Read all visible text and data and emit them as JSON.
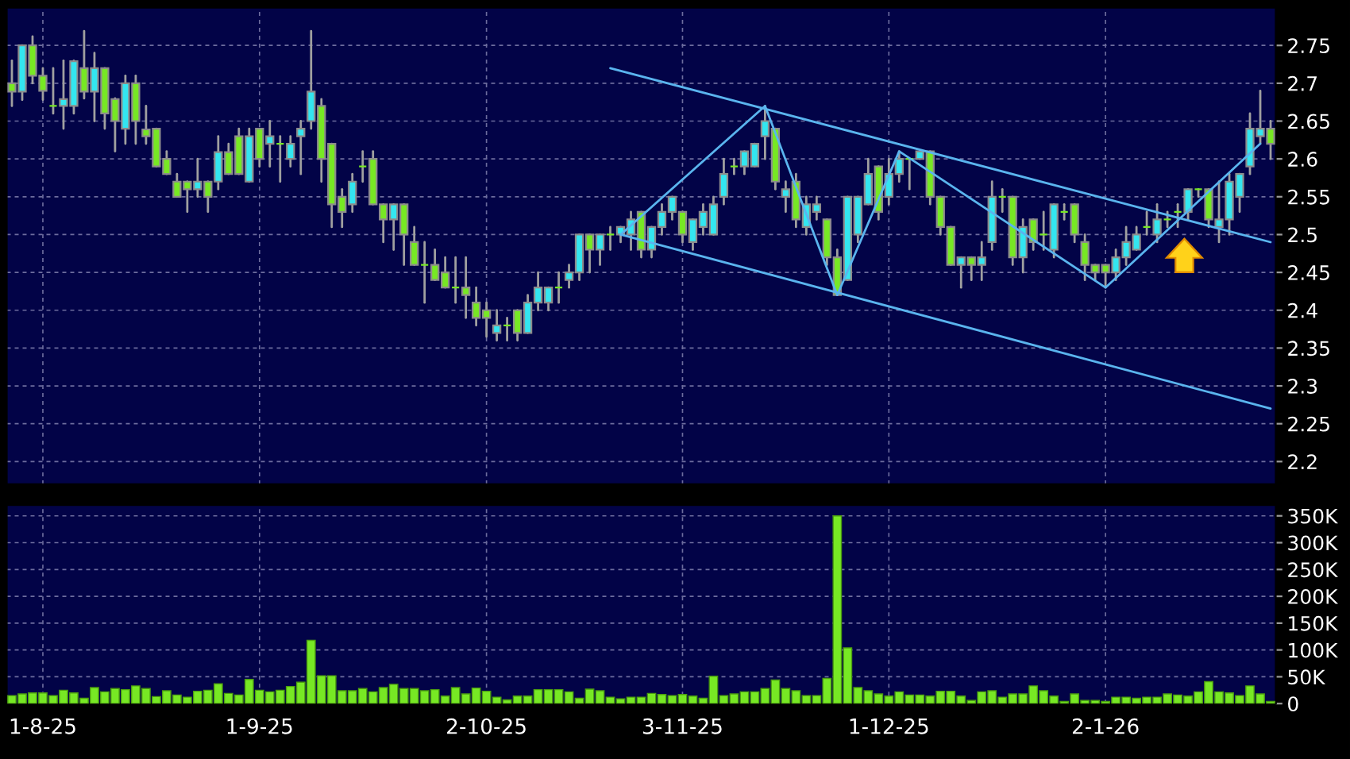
{
  "chart_data": [
    {
      "type": "candlestick",
      "tick_labels": "y",
      "grid": true,
      "categories": [
        null,
        null,
        null,
        null,
        null,
        null,
        null,
        null,
        null,
        null,
        null,
        null,
        null,
        null,
        null,
        null,
        null,
        null,
        null,
        null,
        null,
        null,
        null,
        null,
        null,
        null,
        null,
        null,
        null,
        null,
        null,
        null,
        null,
        null,
        null,
        null,
        null,
        null,
        null,
        null,
        null,
        null,
        null,
        null,
        null,
        null,
        null,
        null,
        null,
        null,
        null,
        null,
        null,
        null,
        null,
        null,
        null,
        null,
        null,
        null,
        null,
        null,
        null,
        null,
        null,
        null,
        null,
        null,
        null,
        null,
        null,
        null,
        null,
        null,
        null,
        null,
        null,
        null,
        null,
        null,
        null,
        null,
        null,
        null,
        null,
        null,
        null,
        null,
        null,
        null,
        null,
        null,
        null,
        null,
        null,
        null,
        null,
        null,
        null,
        null,
        null,
        null,
        null,
        null,
        null,
        null,
        null,
        null,
        null,
        null,
        null,
        null,
        null,
        null,
        null,
        null,
        null,
        null,
        null,
        null,
        null,
        null,
        null
      ],
      "ohlc": [
        [
          2.7,
          2.73,
          2.67,
          2.689
        ],
        [
          2.689,
          2.75,
          2.678,
          2.75
        ],
        [
          2.75,
          2.762,
          2.7,
          2.71
        ],
        [
          2.71,
          2.72,
          2.678,
          2.69
        ],
        [
          2.67,
          2.72,
          2.66,
          2.67
        ],
        [
          2.67,
          2.73,
          2.64,
          2.679
        ],
        [
          2.67,
          2.73,
          2.66,
          2.729
        ],
        [
          2.72,
          2.769,
          2.68,
          2.689
        ],
        [
          2.689,
          2.74,
          2.65,
          2.72
        ],
        [
          2.72,
          2.72,
          2.64,
          2.66
        ],
        [
          2.679,
          2.68,
          2.61,
          2.65
        ],
        [
          2.64,
          2.71,
          2.62,
          2.7
        ],
        [
          2.7,
          2.71,
          2.62,
          2.65
        ],
        [
          2.639,
          2.67,
          2.62,
          2.63
        ],
        [
          2.64,
          2.64,
          2.59,
          2.59
        ],
        [
          2.6,
          2.61,
          2.58,
          2.58
        ],
        [
          2.57,
          2.58,
          2.55,
          2.55
        ],
        [
          2.57,
          2.57,
          2.53,
          2.56
        ],
        [
          2.56,
          2.6,
          2.55,
          2.57
        ],
        [
          2.57,
          2.57,
          2.53,
          2.55
        ],
        [
          2.57,
          2.63,
          2.56,
          2.609
        ],
        [
          2.609,
          2.62,
          2.58,
          2.58
        ],
        [
          2.63,
          2.64,
          2.58,
          2.58
        ],
        [
          2.57,
          2.64,
          2.57,
          2.63
        ],
        [
          2.64,
          2.64,
          2.59,
          2.6
        ],
        [
          2.62,
          2.65,
          2.59,
          2.63
        ],
        [
          2.62,
          2.63,
          2.57,
          2.62
        ],
        [
          2.6,
          2.63,
          2.59,
          2.62
        ],
        [
          2.63,
          2.65,
          2.58,
          2.64
        ],
        [
          2.65,
          2.769,
          2.64,
          2.689
        ],
        [
          2.67,
          2.679,
          2.57,
          2.6
        ],
        [
          2.62,
          2.62,
          2.51,
          2.54
        ],
        [
          2.55,
          2.56,
          2.51,
          2.53
        ],
        [
          2.54,
          2.58,
          2.53,
          2.57
        ],
        [
          2.59,
          2.61,
          2.57,
          2.59
        ],
        [
          2.6,
          2.61,
          2.54,
          2.54
        ],
        [
          2.54,
          2.54,
          2.49,
          2.52
        ],
        [
          2.52,
          2.54,
          2.48,
          2.54
        ],
        [
          2.54,
          2.54,
          2.46,
          2.5
        ],
        [
          2.49,
          2.51,
          2.46,
          2.46
        ],
        [
          2.46,
          2.49,
          2.41,
          2.46
        ],
        [
          2.46,
          2.48,
          2.44,
          2.44
        ],
        [
          2.45,
          2.47,
          2.43,
          2.43
        ],
        [
          2.43,
          2.47,
          2.41,
          2.43
        ],
        [
          2.43,
          2.47,
          2.39,
          2.42
        ],
        [
          2.41,
          2.43,
          2.38,
          2.39
        ],
        [
          2.4,
          2.41,
          2.365,
          2.39
        ],
        [
          2.37,
          2.4,
          2.36,
          2.38
        ],
        [
          2.38,
          2.39,
          2.36,
          2.38
        ],
        [
          2.4,
          2.4,
          2.36,
          2.37
        ],
        [
          2.37,
          2.42,
          2.37,
          2.41
        ],
        [
          2.41,
          2.45,
          2.4,
          2.43
        ],
        [
          2.41,
          2.43,
          2.4,
          2.43
        ],
        [
          2.43,
          2.45,
          2.41,
          2.43
        ],
        [
          2.44,
          2.46,
          2.43,
          2.45
        ],
        [
          2.45,
          2.5,
          2.44,
          2.5
        ],
        [
          2.5,
          2.5,
          2.45,
          2.48
        ],
        [
          2.48,
          2.5,
          2.46,
          2.5
        ],
        [
          2.5,
          2.51,
          2.48,
          2.5
        ],
        [
          2.5,
          2.51,
          2.49,
          2.51
        ],
        [
          2.5,
          2.53,
          2.48,
          2.52
        ],
        [
          2.53,
          2.53,
          2.47,
          2.48
        ],
        [
          2.48,
          2.51,
          2.47,
          2.51
        ],
        [
          2.51,
          2.54,
          2.5,
          2.53
        ],
        [
          2.53,
          2.55,
          2.52,
          2.55
        ],
        [
          2.53,
          2.53,
          2.49,
          2.5
        ],
        [
          2.49,
          2.52,
          2.48,
          2.52
        ],
        [
          2.51,
          2.54,
          2.5,
          2.53
        ],
        [
          2.5,
          2.55,
          2.5,
          2.54
        ],
        [
          2.55,
          2.6,
          2.54,
          2.58
        ],
        [
          2.59,
          2.6,
          2.58,
          2.59
        ],
        [
          2.59,
          2.61,
          2.58,
          2.61
        ],
        [
          2.59,
          2.62,
          2.59,
          2.62
        ],
        [
          2.63,
          2.67,
          2.6,
          2.65
        ],
        [
          2.64,
          2.64,
          2.56,
          2.57
        ],
        [
          2.55,
          2.57,
          2.53,
          2.56
        ],
        [
          2.57,
          2.58,
          2.51,
          2.52
        ],
        [
          2.51,
          2.55,
          2.5,
          2.54
        ],
        [
          2.53,
          2.55,
          2.52,
          2.54
        ],
        [
          2.52,
          2.52,
          2.46,
          2.47
        ],
        [
          2.47,
          2.48,
          2.42,
          2.42
        ],
        [
          2.44,
          2.55,
          2.44,
          2.55
        ],
        [
          2.5,
          2.55,
          2.49,
          2.55
        ],
        [
          2.54,
          2.6,
          2.54,
          2.58
        ],
        [
          2.59,
          2.59,
          2.52,
          2.53
        ],
        [
          2.55,
          2.6,
          2.54,
          2.58
        ],
        [
          2.58,
          2.61,
          2.57,
          2.6
        ],
        [
          2.6,
          2.6,
          2.56,
          2.6
        ],
        [
          2.6,
          2.61,
          2.6,
          2.61
        ],
        [
          2.61,
          2.61,
          2.54,
          2.55
        ],
        [
          2.55,
          2.55,
          2.5,
          2.51
        ],
        [
          2.51,
          2.51,
          2.46,
          2.46
        ],
        [
          2.46,
          2.47,
          2.43,
          2.47
        ],
        [
          2.47,
          2.47,
          2.44,
          2.46
        ],
        [
          2.46,
          2.49,
          2.44,
          2.47
        ],
        [
          2.49,
          2.57,
          2.48,
          2.55
        ],
        [
          2.55,
          2.56,
          2.53,
          2.55
        ],
        [
          2.55,
          2.55,
          2.46,
          2.47
        ],
        [
          2.47,
          2.52,
          2.45,
          2.51
        ],
        [
          2.52,
          2.52,
          2.48,
          2.49
        ],
        [
          2.5,
          2.53,
          2.48,
          2.5
        ],
        [
          2.48,
          2.54,
          2.47,
          2.54
        ],
        [
          2.53,
          2.54,
          2.52,
          2.53
        ],
        [
          2.54,
          2.54,
          2.49,
          2.5
        ],
        [
          2.49,
          2.5,
          2.44,
          2.46
        ],
        [
          2.46,
          2.46,
          2.44,
          2.45
        ],
        [
          2.46,
          2.46,
          2.43,
          2.45
        ],
        [
          2.45,
          2.48,
          2.44,
          2.47
        ],
        [
          2.47,
          2.51,
          2.46,
          2.49
        ],
        [
          2.48,
          2.51,
          2.48,
          2.5
        ],
        [
          2.51,
          2.53,
          2.5,
          2.51
        ],
        [
          2.5,
          2.54,
          2.49,
          2.52
        ],
        [
          2.52,
          2.53,
          2.51,
          2.52
        ],
        [
          2.53,
          2.54,
          2.51,
          2.53
        ],
        [
          2.53,
          2.56,
          2.52,
          2.56
        ],
        [
          2.56,
          2.56,
          2.55,
          2.56
        ],
        [
          2.56,
          2.56,
          2.51,
          2.52
        ],
        [
          2.51,
          2.57,
          2.49,
          2.52
        ],
        [
          2.52,
          2.58,
          2.5,
          2.57
        ],
        [
          2.55,
          2.58,
          2.53,
          2.58
        ],
        [
          2.59,
          2.66,
          2.58,
          2.64
        ],
        [
          2.63,
          2.69,
          2.62,
          2.64
        ],
        [
          2.64,
          2.65,
          2.6,
          2.62
        ]
      ],
      "colors": [
        "#77e824",
        "#33e6f0",
        "#77e824",
        "#77e824",
        "#77e824",
        "#33e6f0",
        "#33e6f0",
        "#77e824",
        "#33e6f0",
        "#77e824",
        "#77e824",
        "#33e6f0",
        "#77e824",
        "#77e824",
        "#77e824",
        "#77e824",
        "#77e824",
        "#77e824",
        "#33e6f0",
        "#77e824",
        "#33e6f0",
        "#77e824",
        "#77e824",
        "#33e6f0",
        "#77e824",
        "#33e6f0",
        "#77e824",
        "#33e6f0",
        "#33e6f0",
        "#33e6f0",
        "#77e824",
        "#77e824",
        "#77e824",
        "#33e6f0",
        "#77e824",
        "#77e824",
        "#77e824",
        "#33e6f0",
        "#77e824",
        "#77e824",
        "#77e824",
        "#77e824",
        "#77e824",
        "#77e824",
        "#77e824",
        "#77e824",
        "#77e824",
        "#33e6f0",
        "#77e824",
        "#77e824",
        "#33e6f0",
        "#33e6f0",
        "#33e6f0",
        "#77e824",
        "#33e6f0",
        "#33e6f0",
        "#77e824",
        "#33e6f0",
        "#77e824",
        "#33e6f0",
        "#33e6f0",
        "#77e824",
        "#33e6f0",
        "#33e6f0",
        "#33e6f0",
        "#77e824",
        "#33e6f0",
        "#33e6f0",
        "#33e6f0",
        "#33e6f0",
        "#77e824",
        "#33e6f0",
        "#33e6f0",
        "#33e6f0",
        "#77e824",
        "#33e6f0",
        "#77e824",
        "#33e6f0",
        "#33e6f0",
        "#77e824",
        "#77e824",
        "#33e6f0",
        "#33e6f0",
        "#33e6f0",
        "#77e824",
        "#33e6f0",
        "#33e6f0",
        "#77e824",
        "#33e6f0",
        "#77e824",
        "#77e824",
        "#77e824",
        "#33e6f0",
        "#77e824",
        "#33e6f0",
        "#33e6f0",
        "#77e824",
        "#77e824",
        "#33e6f0",
        "#77e824",
        "#77e824",
        "#33e6f0",
        "#77e824",
        "#77e824",
        "#77e824",
        "#77e824",
        "#77e824",
        "#33e6f0",
        "#33e6f0",
        "#33e6f0",
        "#77e824",
        "#33e6f0",
        "#77e824",
        "#77e824",
        "#33e6f0",
        "#77e824",
        "#77e824",
        "#33e6f0",
        "#33e6f0",
        "#33e6f0",
        "#33e6f0",
        "#33e6f0",
        "#77e824"
      ],
      "series": [
        {
          "type": "line",
          "color": "#5ab4ee",
          "values": [
            null,
            null,
            null,
            null,
            null,
            null,
            null,
            null,
            null,
            null,
            null,
            null,
            null,
            null,
            null,
            null,
            null,
            null,
            null,
            null,
            null,
            null,
            null,
            null,
            null,
            null,
            null,
            null,
            null,
            null,
            null,
            null,
            null,
            null,
            null,
            null,
            null,
            null,
            null,
            null,
            null,
            null,
            null,
            null,
            null,
            null,
            null,
            null,
            null,
            null,
            null,
            null,
            null,
            null,
            null,
            null,
            null,
            null,
            2.72,
            null,
            null,
            null,
            null,
            null,
            null,
            null,
            null,
            null,
            null,
            null,
            null,
            null,
            null,
            null,
            null,
            null,
            null,
            null,
            null,
            null,
            null,
            null,
            null,
            null,
            null,
            null,
            null,
            null,
            null,
            null,
            null,
            null,
            null,
            null,
            null,
            null,
            null,
            null,
            null,
            null,
            null,
            null,
            null,
            null,
            null,
            null,
            null,
            null,
            null,
            null,
            null,
            null,
            null,
            null,
            null,
            null,
            null,
            null,
            null,
            null,
            null,
            null,
            2.49
          ]
        },
        {
          "type": "line",
          "color": "#5ab4ee",
          "values": [
            null,
            null,
            null,
            null,
            null,
            null,
            null,
            null,
            null,
            null,
            null,
            null,
            null,
            null,
            null,
            null,
            null,
            null,
            null,
            null,
            null,
            null,
            null,
            null,
            null,
            null,
            null,
            null,
            null,
            null,
            null,
            null,
            null,
            null,
            null,
            null,
            null,
            null,
            null,
            null,
            null,
            null,
            null,
            null,
            null,
            null,
            null,
            null,
            null,
            null,
            null,
            null,
            null,
            null,
            null,
            null,
            null,
            null,
            null,
            2.5,
            null,
            null,
            null,
            null,
            null,
            null,
            null,
            null,
            null,
            null,
            null,
            null,
            null,
            null,
            null,
            null,
            null,
            null,
            null,
            null,
            null,
            null,
            null,
            null,
            null,
            null,
            null,
            null,
            null,
            null,
            null,
            null,
            null,
            null,
            null,
            null,
            null,
            null,
            null,
            null,
            null,
            null,
            null,
            null,
            null,
            null,
            null,
            null,
            null,
            null,
            null,
            null,
            null,
            null,
            null,
            null,
            null,
            null,
            null,
            null,
            null,
            null,
            2.27
          ]
        },
        {
          "type": "line",
          "color": "#5ab4ee",
          "values": [
            null,
            null,
            null,
            null,
            null,
            null,
            null,
            null,
            null,
            null,
            null,
            null,
            null,
            null,
            null,
            null,
            null,
            null,
            null,
            null,
            null,
            null,
            null,
            null,
            null,
            null,
            null,
            null,
            null,
            null,
            null,
            null,
            null,
            null,
            null,
            null,
            null,
            null,
            null,
            null,
            null,
            null,
            null,
            null,
            null,
            null,
            null,
            null,
            null,
            null,
            null,
            null,
            null,
            null,
            null,
            null,
            null,
            null,
            null,
            2.5,
            null,
            null,
            null,
            null,
            null,
            null,
            null,
            null,
            null,
            null,
            null,
            null,
            null,
            2.67,
            null,
            null,
            null,
            null,
            null,
            null,
            2.42,
            null,
            null,
            null,
            null,
            null,
            2.61,
            null,
            null,
            null,
            null,
            null,
            null,
            null,
            null,
            null,
            null,
            null,
            null,
            null,
            null,
            null,
            null,
            null,
            null,
            null,
            2.43,
            null,
            null,
            null,
            null,
            null,
            null,
            null,
            null,
            null,
            null,
            null,
            null,
            null,
            null,
            2.62,
            null
          ]
        }
      ],
      "ylim": [
        2.17,
        2.8
      ],
      "yticks": [
        2.2,
        2.25,
        2.3,
        2.35,
        2.4,
        2.45,
        2.5,
        2.55,
        2.6,
        2.65,
        2.7,
        2.75
      ]
    },
    {
      "type": "bar",
      "grid": true,
      "color": "#77e824",
      "categories": [
        null,
        null,
        null,
        "1-8-25",
        null,
        null,
        null,
        null,
        null,
        null,
        null,
        null,
        null,
        null,
        null,
        null,
        null,
        null,
        null,
        null,
        null,
        null,
        null,
        null,
        "1-9-25",
        null,
        null,
        null,
        null,
        null,
        null,
        null,
        null,
        null,
        null,
        null,
        null,
        null,
        null,
        null,
        null,
        null,
        null,
        null,
        null,
        null,
        "2-10-25",
        null,
        null,
        null,
        null,
        null,
        null,
        null,
        null,
        null,
        null,
        null,
        null,
        null,
        null,
        null,
        null,
        null,
        null,
        "3-11-25",
        null,
        null,
        null,
        null,
        null,
        null,
        null,
        null,
        null,
        null,
        null,
        null,
        null,
        null,
        null,
        null,
        null,
        null,
        null,
        "1-12-25",
        null,
        null,
        null,
        null,
        null,
        null,
        null,
        null,
        null,
        null,
        null,
        null,
        null,
        null,
        null,
        null,
        null,
        null,
        null,
        null,
        "2-1-26",
        null,
        null,
        null,
        null,
        null,
        null,
        null,
        null,
        null,
        null,
        null,
        null,
        null,
        null,
        null,
        null
      ],
      "values": [
        15000,
        18000,
        20000,
        20000,
        15000,
        25000,
        20000,
        10000,
        30000,
        22000,
        28000,
        26000,
        33000,
        28000,
        13000,
        24000,
        16000,
        12000,
        23000,
        25000,
        37000,
        19000,
        16000,
        45000,
        25000,
        22000,
        25000,
        32000,
        40000,
        118000,
        52000,
        52000,
        24000,
        24000,
        28000,
        22000,
        30000,
        36000,
        28000,
        28000,
        24000,
        26000,
        14000,
        30000,
        18000,
        29000,
        23000,
        12000,
        7000,
        14000,
        14000,
        26000,
        26000,
        26000,
        22000,
        10000,
        27000,
        24000,
        12000,
        9000,
        12000,
        12000,
        19000,
        17000,
        15000,
        17000,
        14000,
        10000,
        51000,
        15000,
        18000,
        22000,
        22000,
        28000,
        44000,
        28000,
        24000,
        15000,
        15000,
        47000,
        350000,
        104000,
        30000,
        24000,
        18000,
        14000,
        22000,
        16000,
        16000,
        14000,
        23000,
        23000,
        14000,
        6000,
        22000,
        24000,
        12000,
        18000,
        18000,
        33000,
        24000,
        14000,
        4000,
        18000,
        6000,
        6000,
        4000,
        12000,
        12000,
        10000,
        12000,
        12000,
        18000,
        16000,
        14000,
        22000,
        41000,
        22000,
        20000,
        15000,
        33000,
        18000,
        4000
      ],
      "ylim": [
        0,
        370000
      ],
      "yticks": [
        0,
        {
          "value": 50000,
          "label": "50K"
        },
        {
          "value": 100000,
          "label": "100K"
        },
        {
          "value": 150000,
          "label": "150K"
        },
        {
          "value": 200000,
          "label": "200K"
        },
        {
          "value": 250000,
          "label": "250K"
        },
        {
          "value": 300000,
          "label": "300K"
        },
        {
          "value": 350000,
          "label": "350K"
        }
      ]
    }
  ]
}
